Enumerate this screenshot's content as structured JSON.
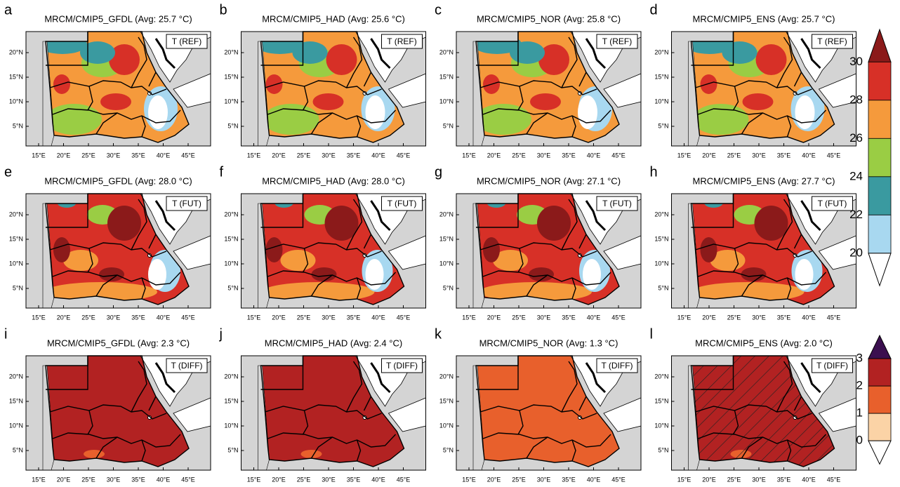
{
  "panels": [
    {
      "letter": "a",
      "title": "MRCM/CMIP5_GFDL (Avg: 25.7 °C)",
      "tag": "T (REF)"
    },
    {
      "letter": "b",
      "title": "MRCM/CMIP5_HAD (Avg: 25.6 °C)",
      "tag": "T (REF)"
    },
    {
      "letter": "c",
      "title": "MRCM/CMIP5_NOR (Avg: 25.8 °C)",
      "tag": "T (REF)"
    },
    {
      "letter": "d",
      "title": "MRCM/CMIP5_ENS (Avg: 25.7 °C)",
      "tag": "T (REF)"
    },
    {
      "letter": "e",
      "title": "MRCM/CMIP5_GFDL (Avg: 28.0 °C)",
      "tag": "T (FUT)"
    },
    {
      "letter": "f",
      "title": "MRCM/CMIP5_HAD (Avg: 28.0 °C)",
      "tag": "T (FUT)"
    },
    {
      "letter": "g",
      "title": "MRCM/CMIP5_NOR (Avg: 27.1 °C)",
      "tag": "T (FUT)"
    },
    {
      "letter": "h",
      "title": "MRCM/CMIP5_ENS (Avg: 27.7 °C)",
      "tag": "T (FUT)"
    },
    {
      "letter": "i",
      "title": "MRCM/CMIP5_GFDL (Avg: 2.3 °C)",
      "tag": "T (DIFF)"
    },
    {
      "letter": "j",
      "title": "MRCM/CMIP5_HAD (Avg: 2.4 °C)",
      "tag": "T (DIFF)"
    },
    {
      "letter": "k",
      "title": "MRCM/CMIP5_NOR (Avg: 1.3 °C)",
      "tag": "T (DIFF)"
    },
    {
      "letter": "l",
      "title": "MRCM/CMIP5_ENS (Avg: 2.0 °C)",
      "tag": "T (DIFF)"
    }
  ],
  "lat_labels": [
    "20°N",
    "15°N",
    "10°N",
    "5°N"
  ],
  "lon_labels": [
    "15°E",
    "20°E",
    "25°E",
    "30°E",
    "35°E",
    "40°E",
    "45°E"
  ],
  "colorbar_temperature": {
    "labels": [
      "30",
      "28",
      "26",
      "24",
      "22",
      "20"
    ]
  },
  "colorbar_difference": {
    "labels": [
      "3",
      "2",
      "1",
      "0"
    ]
  }
}
